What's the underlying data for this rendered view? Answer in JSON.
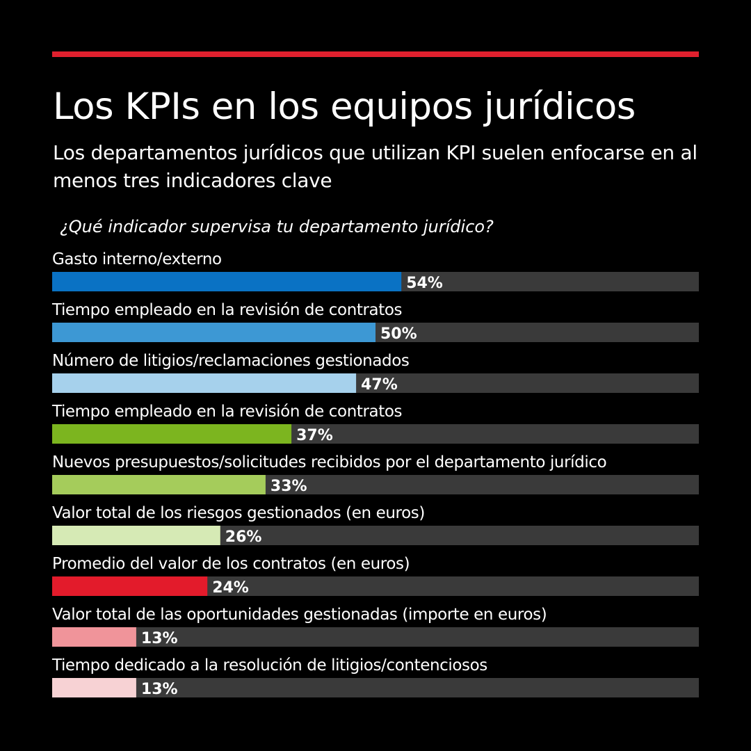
{
  "header": {
    "title": "Los KPIs en los equipos jurídicos",
    "subtitle": "Los departamentos jurídicos que utilizan KPI suelen enfocarse en al menos tres indicadores clave",
    "question": "¿Qué indicador supervisa tu departamento jurídico?"
  },
  "colors": {
    "background": "#000000",
    "accent_rule": "#e0202e",
    "track": "#3a3a3a",
    "text": "#ffffff"
  },
  "chart_data": {
    "type": "bar",
    "orientation": "horizontal",
    "title": "Los KPIs en los equipos jurídicos",
    "subtitle": "Los departamentos jurídicos que utilizan KPI suelen enfocarse en al menos tres indicadores clave",
    "xlim": [
      0,
      100
    ],
    "grid": false,
    "categories": [
      "Gasto interno/externo",
      "Tiempo empleado en la revisión de contratos",
      "Número de litigios/reclamaciones gestionados",
      "Tiempo empleado en la revisión de contratos",
      "Nuevos presupuestos/solicitudes recibidos por el departamento jurídico",
      "Valor total de los riesgos gestionados (en euros)",
      "Promedio del valor de los contratos (en euros)",
      "Valor total de las oportunidades gestionadas (importe en euros)",
      "Tiempo dedicado a la resolución de litigios/contenciosos"
    ],
    "values": [
      54,
      50,
      47,
      37,
      33,
      26,
      24,
      13,
      13
    ],
    "value_labels": [
      "54%",
      "50%",
      "47%",
      "37%",
      "33%",
      "26%",
      "24%",
      "13%",
      "13%"
    ],
    "bar_colors": [
      "#0a72c4",
      "#3d98d4",
      "#a6d1ec",
      "#7cb51f",
      "#a5cc5b",
      "#d6eab5",
      "#e31b2b",
      "#f0949a",
      "#f7d2d4"
    ]
  }
}
